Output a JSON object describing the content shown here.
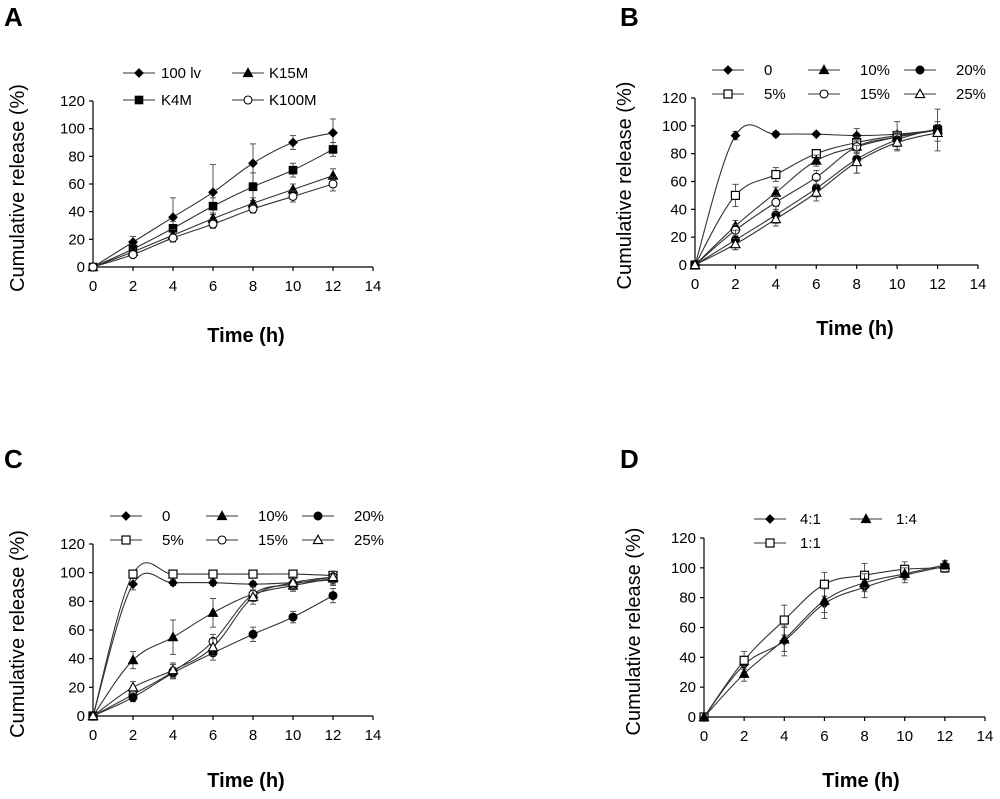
{
  "figure": {
    "panels": [
      "A",
      "B",
      "C",
      "D"
    ]
  },
  "chart_data": [
    {
      "panel": "A",
      "type": "line",
      "xlabel": "Time (h)",
      "ylabel": "Cumulative release (%)",
      "xlim": [
        0,
        14
      ],
      "ylim": [
        0,
        120
      ],
      "xticks": [
        0,
        2,
        4,
        6,
        8,
        10,
        12,
        14
      ],
      "yticks": [
        0,
        20,
        40,
        60,
        80,
        100,
        120
      ],
      "x": [
        0,
        2,
        4,
        6,
        8,
        10,
        12
      ],
      "legend_position": "top",
      "series": [
        {
          "name": "100 lv",
          "marker": "diamond",
          "values": [
            0,
            18,
            36,
            54,
            75,
            90,
            97
          ],
          "errors": [
            0,
            4,
            14,
            20,
            14,
            5,
            10
          ]
        },
        {
          "name": "K4M",
          "marker": "square",
          "values": [
            0,
            13,
            28,
            44,
            58,
            70,
            85
          ],
          "errors": [
            0,
            3,
            5,
            6,
            10,
            5,
            5
          ]
        },
        {
          "name": "K15M",
          "marker": "triangle",
          "values": [
            0,
            11,
            23,
            35,
            46,
            56,
            66
          ],
          "errors": [
            0,
            2,
            4,
            4,
            4,
            4,
            5
          ]
        },
        {
          "name": "K100M",
          "marker": "circle-open",
          "values": [
            0,
            9,
            21,
            31,
            42,
            51,
            60
          ],
          "errors": [
            0,
            2,
            3,
            3,
            3,
            4,
            5
          ]
        }
      ]
    },
    {
      "panel": "B",
      "type": "line",
      "xlabel": "Time (h)",
      "ylabel": "Cumulative release (%)",
      "xlim": [
        0,
        14
      ],
      "ylim": [
        0,
        120
      ],
      "xticks": [
        0,
        2,
        4,
        6,
        8,
        10,
        12,
        14
      ],
      "yticks": [
        0,
        20,
        40,
        60,
        80,
        100,
        120
      ],
      "x": [
        0,
        2,
        4,
        6,
        8,
        10,
        12
      ],
      "legend_position": "top",
      "series": [
        {
          "name": "0",
          "marker": "diamond",
          "values": [
            0,
            93,
            94,
            94,
            93,
            94,
            97
          ],
          "errors": [
            0,
            3,
            2,
            1,
            5,
            2,
            3
          ]
        },
        {
          "name": "5%",
          "marker": "square-open",
          "values": [
            0,
            50,
            65,
            80,
            88,
            93,
            97
          ],
          "errors": [
            0,
            8,
            5,
            3,
            4,
            10,
            15
          ]
        },
        {
          "name": "10%",
          "marker": "triangle",
          "values": [
            0,
            28,
            52,
            75,
            85,
            92,
            97
          ],
          "errors": [
            0,
            4,
            4,
            4,
            4,
            4,
            4
          ]
        },
        {
          "name": "15%",
          "marker": "circle-open",
          "values": [
            0,
            25,
            45,
            63,
            85,
            92,
            97
          ],
          "errors": [
            0,
            4,
            5,
            5,
            5,
            4,
            4
          ]
        },
        {
          "name": "20%",
          "marker": "circle",
          "values": [
            0,
            18,
            36,
            55,
            76,
            90,
            98
          ],
          "errors": [
            0,
            7,
            6,
            6,
            10,
            5,
            5
          ]
        },
        {
          "name": "25%",
          "marker": "triangle-open",
          "values": [
            0,
            15,
            33,
            52,
            74,
            88,
            95
          ],
          "errors": [
            0,
            4,
            5,
            6,
            8,
            6,
            6
          ]
        }
      ]
    },
    {
      "panel": "C",
      "type": "line",
      "xlabel": "Time (h)",
      "ylabel": "Cumulative release (%)",
      "xlim": [
        0,
        14
      ],
      "ylim": [
        0,
        120
      ],
      "xticks": [
        0,
        2,
        4,
        6,
        8,
        10,
        12,
        14
      ],
      "yticks": [
        0,
        20,
        40,
        60,
        80,
        100,
        120
      ],
      "x": [
        0,
        2,
        4,
        6,
        8,
        10,
        12
      ],
      "legend_position": "top",
      "series": [
        {
          "name": "0",
          "marker": "diamond",
          "values": [
            0,
            92,
            93,
            93,
            92,
            93,
            95
          ],
          "errors": [
            0,
            4,
            2,
            2,
            2,
            2,
            3
          ]
        },
        {
          "name": "5%",
          "marker": "square-open",
          "values": [
            0,
            99,
            99,
            99,
            99,
            99,
            98
          ],
          "errors": [
            0,
            2,
            2,
            2,
            2,
            2,
            2
          ]
        },
        {
          "name": "10%",
          "marker": "triangle",
          "values": [
            0,
            39,
            55,
            72,
            85,
            91,
            96
          ],
          "errors": [
            0,
            6,
            12,
            10,
            5,
            4,
            5
          ]
        },
        {
          "name": "15%",
          "marker": "circle-open",
          "values": [
            0,
            15,
            31,
            52,
            85,
            92,
            97
          ],
          "errors": [
            0,
            5,
            5,
            5,
            5,
            4,
            4
          ]
        },
        {
          "name": "20%",
          "marker": "circle",
          "values": [
            0,
            13,
            30,
            44,
            57,
            69,
            84
          ],
          "errors": [
            0,
            3,
            4,
            5,
            5,
            4,
            5
          ]
        },
        {
          "name": "25%",
          "marker": "triangle-open",
          "values": [
            0,
            20,
            32,
            48,
            83,
            93,
            97
          ],
          "errors": [
            0,
            4,
            5,
            6,
            5,
            4,
            4
          ]
        }
      ]
    },
    {
      "panel": "D",
      "type": "line",
      "xlabel": "Time (h)",
      "ylabel": "Cumulative release (%)",
      "xlim": [
        0,
        14
      ],
      "ylim": [
        0,
        120
      ],
      "xticks": [
        0,
        2,
        4,
        6,
        8,
        10,
        12,
        14
      ],
      "yticks": [
        0,
        20,
        40,
        60,
        80,
        100,
        120
      ],
      "x": [
        0,
        2,
        4,
        6,
        8,
        10,
        12
      ],
      "legend_position": "top",
      "series": [
        {
          "name": "4:1",
          "marker": "diamond",
          "values": [
            0,
            35,
            51,
            76,
            87,
            95,
            101
          ],
          "errors": [
            0,
            5,
            10,
            10,
            7,
            5,
            3
          ]
        },
        {
          "name": "1:1",
          "marker": "square-open",
          "values": [
            0,
            38,
            65,
            89,
            95,
            99,
            100
          ],
          "errors": [
            0,
            6,
            10,
            8,
            8,
            5,
            3
          ]
        },
        {
          "name": "1:4",
          "marker": "triangle",
          "values": [
            0,
            29,
            52,
            78,
            90,
            96,
            102
          ],
          "errors": [
            0,
            5,
            8,
            8,
            6,
            4,
            3
          ]
        }
      ]
    }
  ]
}
